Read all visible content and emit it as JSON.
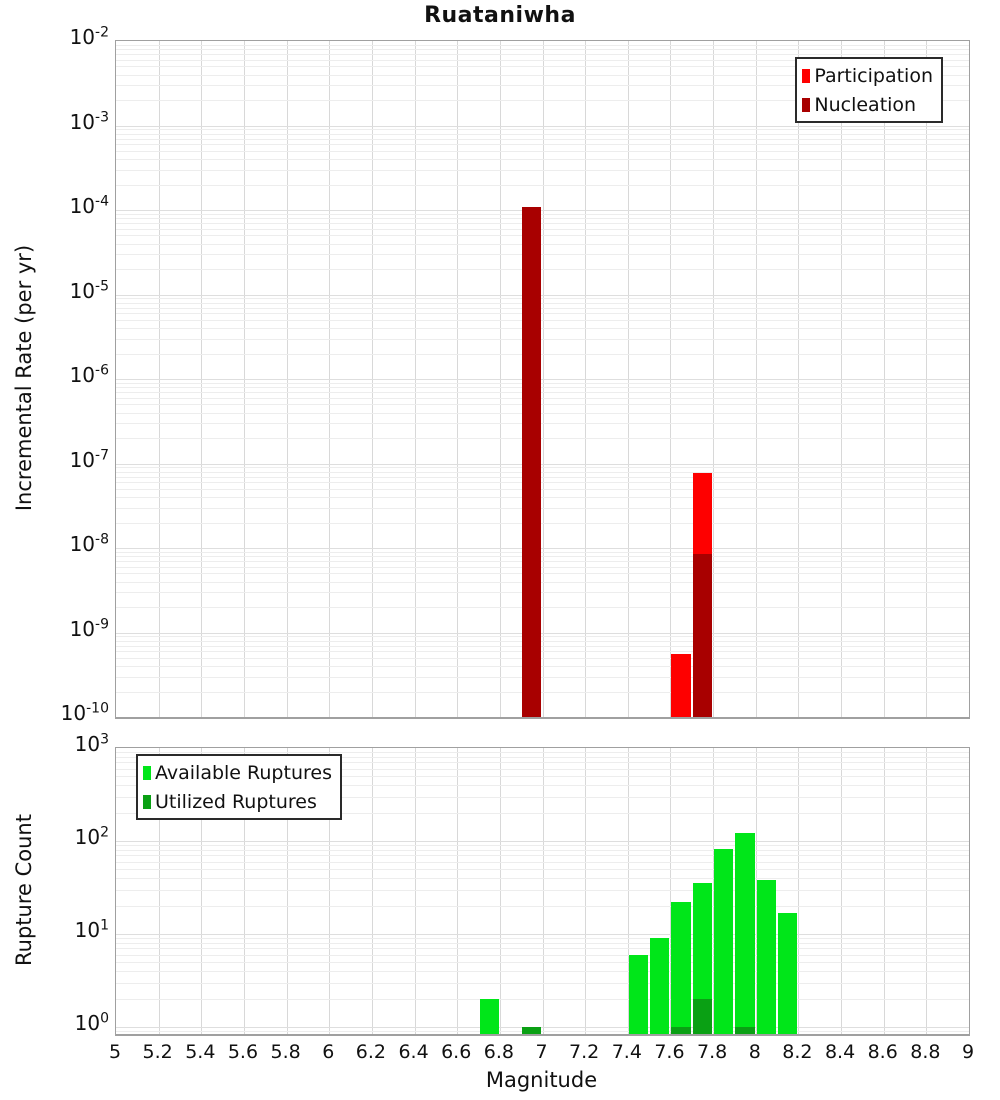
{
  "title": "Ruataniwha",
  "colors": {
    "participation": "#fe0000",
    "nucleation": "#a80000",
    "available": "#00e619",
    "utilized": "#0aa014",
    "grid_major": "#d8d8d8",
    "grid_minor": "#ededed",
    "plot_border": "#a0a0a0"
  },
  "chart_data": [
    {
      "type": "bar",
      "panel": "top",
      "title": "Ruataniwha",
      "ylabel": "Incremental Rate (per yr)",
      "yscale": "log",
      "ylim": [
        1e-10,
        0.01
      ],
      "xlim": [
        5,
        9
      ],
      "bin_width": 0.1,
      "grid": true,
      "legend_position": "top-right",
      "y_tick_base": "10",
      "y_tick_exponents": [
        -2,
        -3,
        -4,
        -5,
        -6,
        -7,
        -8,
        -9,
        -10
      ],
      "series": [
        {
          "name": "Participation",
          "color": "#fe0000",
          "points": [
            {
              "x": 6.95,
              "y": 0.00011
            },
            {
              "x": 7.65,
              "y": 5.5e-10
            },
            {
              "x": 7.75,
              "y": 7.7e-08
            }
          ]
        },
        {
          "name": "Nucleation",
          "color": "#a80000",
          "points": [
            {
              "x": 6.95,
              "y": 0.00011
            },
            {
              "x": 7.75,
              "y": 8.5e-09
            }
          ]
        }
      ]
    },
    {
      "type": "bar",
      "panel": "bottom",
      "ylabel": "Rupture Count",
      "xlabel": "Magnitude",
      "yscale": "log",
      "ylim": [
        0.84,
        1000
      ],
      "xlim": [
        5,
        9
      ],
      "bin_width": 0.1,
      "grid": true,
      "legend_position": "top-left",
      "y_tick_base": "10",
      "y_tick_exponents": [
        3,
        2,
        1,
        0
      ],
      "x_tick_labels": [
        "5",
        "5.2",
        "5.4",
        "5.6",
        "5.8",
        "6",
        "6.2",
        "6.4",
        "6.6",
        "6.8",
        "7",
        "7.2",
        "7.4",
        "7.6",
        "7.8",
        "8",
        "8.2",
        "8.4",
        "8.6",
        "8.8",
        "9"
      ],
      "series": [
        {
          "name": "Available Ruptures",
          "color": "#00e619",
          "points": [
            {
              "x": 6.75,
              "y": 2
            },
            {
              "x": 6.95,
              "y": 1
            },
            {
              "x": 7.45,
              "y": 6
            },
            {
              "x": 7.55,
              "y": 9
            },
            {
              "x": 7.65,
              "y": 22
            },
            {
              "x": 7.75,
              "y": 35
            },
            {
              "x": 7.85,
              "y": 81
            },
            {
              "x": 7.95,
              "y": 122
            },
            {
              "x": 8.05,
              "y": 38
            },
            {
              "x": 8.15,
              "y": 17
            }
          ]
        },
        {
          "name": "Utilized Ruptures",
          "color": "#0aa014",
          "points": [
            {
              "x": 6.95,
              "y": 1
            },
            {
              "x": 7.65,
              "y": 1
            },
            {
              "x": 7.75,
              "y": 2
            },
            {
              "x": 7.95,
              "y": 1
            }
          ]
        }
      ]
    }
  ]
}
